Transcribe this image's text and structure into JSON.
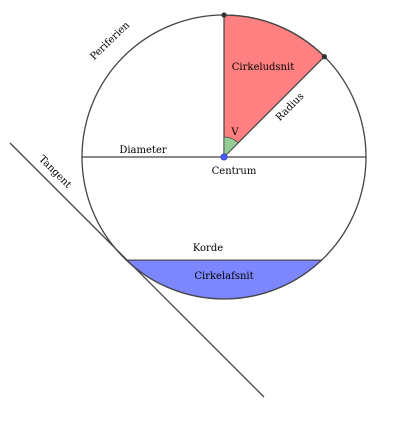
{
  "labels": {
    "periphery": "Periferien",
    "sector": "Cirkeludsnit",
    "radius": "Radius",
    "angle": "V",
    "diameter": "Diameter",
    "center": "Centrum",
    "tangent": "Tangent",
    "chord": "Korde",
    "segment": "Cirkelafsnit"
  },
  "colors": {
    "sector_fill": "#ff8080",
    "segment_fill": "#7b86ff",
    "angle_fill": "#96cc96",
    "center_point": "#4a5cff",
    "lines": "#444444"
  }
}
